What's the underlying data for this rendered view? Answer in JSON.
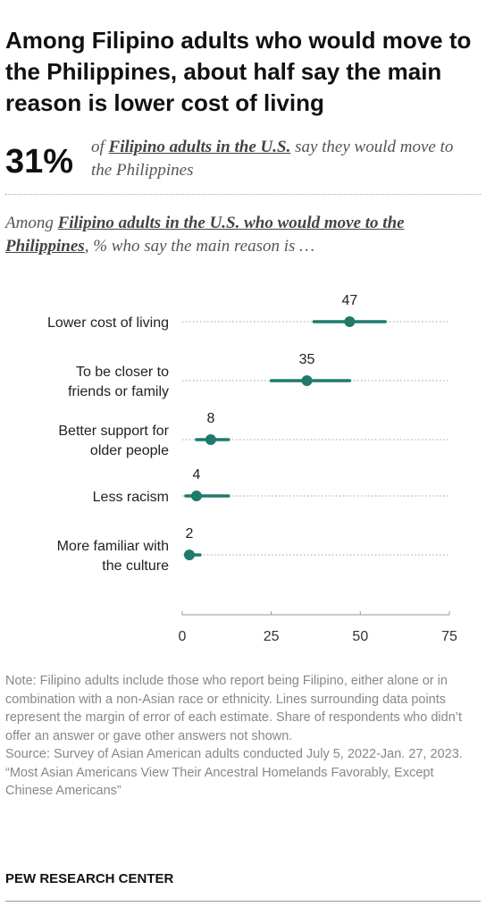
{
  "title": "Among Filipino adults who would move to the Philippines, about half say the main reason is lower cost of living",
  "headline_stat": {
    "value": "31%",
    "prefix": "of ",
    "group": "Filipino adults in the U.S.",
    "suffix": " say they would move to the Philippines"
  },
  "subtitle": {
    "prefix": "Among ",
    "group": "Filipino adults in the U.S. who would move to the Philippines",
    "suffix": ", % who say the main reason is …"
  },
  "colors": {
    "accent": "#1f7a6b",
    "dotted_line": "#b5b5b5",
    "axis": "#999999"
  },
  "chart_data": {
    "type": "scatter",
    "orientation": "horizontal",
    "categories": [
      [
        "Lower cost of living"
      ],
      [
        "To be closer to",
        "friends or family"
      ],
      [
        "Better support for",
        "older people"
      ],
      [
        "Less racism"
      ],
      [
        "More familiar with",
        "the culture"
      ]
    ],
    "values": [
      47,
      35,
      8,
      4,
      2
    ],
    "moe_low": [
      37,
      25,
      4,
      1,
      1
    ],
    "moe_high": [
      57,
      47,
      13,
      13,
      5
    ],
    "value_labels": [
      "47",
      "35",
      "8",
      "4",
      "2"
    ],
    "xlim": [
      0,
      75
    ],
    "xticks": [
      0,
      25,
      50,
      75
    ],
    "xtick_labels": [
      "0",
      "25",
      "50",
      "75"
    ]
  },
  "notes": {
    "note": "Note: Filipino adults include those who report being Filipino, either alone or in combination with a non-Asian race or ethnicity. Lines surrounding data points represent the margin of error of each estimate. Share of respondents who didn’t offer an answer or gave other answers not shown.",
    "source": "Source: Survey of Asian American adults conducted July 5, 2022-Jan. 27, 2023.",
    "report": "“Most Asian Americans View Their Ancestral Homelands Favorably, Except Chinese Americans”"
  },
  "brand": "PEW RESEARCH CENTER"
}
